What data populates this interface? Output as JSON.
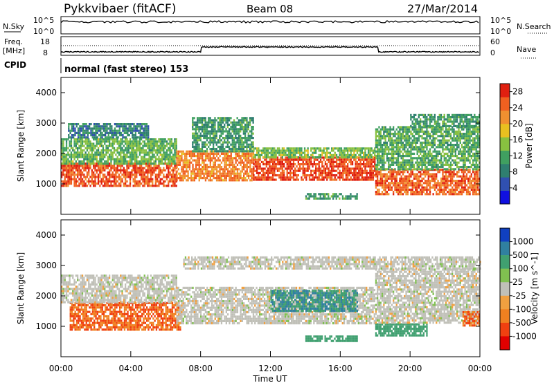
{
  "header": {
    "station": "Pykkvibaer (fitACF)",
    "beam": "Beam 08",
    "date": "27/Mar/2014"
  },
  "status_panels": {
    "nsky": {
      "label": "N.Sky",
      "left_ticks": [
        "10^5",
        "10^0"
      ],
      "right_ticks": [
        "10^5",
        "10^0"
      ],
      "right_label": "N.Search"
    },
    "freq": {
      "label_line1": "Freq.",
      "label_line2": "[MHz]",
      "left_ticks": [
        "18",
        "8"
      ],
      "right_ticks": [
        "60",
        "0"
      ],
      "right_label": "Nave"
    },
    "cpid": {
      "label": "CPID",
      "value_text": "normal (fast stereo) 153"
    }
  },
  "colors": {
    "power_scale": [
      "#1010e0",
      "#3050b0",
      "#2f7f70",
      "#40a060",
      "#88c040",
      "#e8c020",
      "#f09030",
      "#f06020",
      "#e02010"
    ],
    "velocity_scale": [
      "#1040c0",
      "#3080a0",
      "#40a070",
      "#80c050",
      "#c0c0b8",
      "#f0a040",
      "#f08020",
      "#f04010",
      "#e00000"
    ]
  },
  "chart_data": [
    {
      "type": "heatmap",
      "name": "power",
      "ylabel": "Slant Range [km]",
      "ylim": [
        0,
        4500
      ],
      "yticks": [
        1000,
        2000,
        3000,
        4000
      ],
      "xlim_hours": [
        0,
        24
      ],
      "colorbar_label": "Power [dB]",
      "colorbar_ticks": [
        4,
        8,
        12,
        16,
        20,
        24,
        28
      ],
      "colorbar_range": [
        0,
        30
      ],
      "bands": [
        {
          "t": [
            0.0,
            6.6
          ],
          "r": [
            950,
            1700
          ],
          "level": 27
        },
        {
          "t": [
            0.0,
            6.6
          ],
          "r": [
            1700,
            2500
          ],
          "level": 13
        },
        {
          "t": [
            0.4,
            5.0
          ],
          "r": [
            2500,
            3000
          ],
          "level": 8
        },
        {
          "t": [
            6.6,
            11.0
          ],
          "r": [
            1100,
            2100
          ],
          "level": 24
        },
        {
          "t": [
            7.5,
            11.0
          ],
          "r": [
            2100,
            3200
          ],
          "level": 10
        },
        {
          "t": [
            11.0,
            18.0
          ],
          "r": [
            1150,
            1900
          ],
          "level": 28
        },
        {
          "t": [
            11.0,
            18.0
          ],
          "r": [
            1900,
            2200
          ],
          "level": 14
        },
        {
          "t": [
            14.0,
            17.0
          ],
          "r": [
            550,
            700
          ],
          "level": 10
        },
        {
          "t": [
            18.0,
            24.0
          ],
          "r": [
            700,
            1500
          ],
          "level": 26
        },
        {
          "t": [
            18.0,
            24.0
          ],
          "r": [
            1500,
            2900
          ],
          "level": 12
        },
        {
          "t": [
            20.0,
            24.0
          ],
          "r": [
            2900,
            3300
          ],
          "level": 10
        }
      ]
    },
    {
      "type": "heatmap",
      "name": "velocity",
      "ylabel": "Slant Range [km]",
      "ylim": [
        0,
        4500
      ],
      "yticks": [
        1000,
        2000,
        3000,
        4000
      ],
      "xlim_hours": [
        0,
        24
      ],
      "colorbar_label": "Velocity [m s^-1]",
      "colorbar_ticks": [
        "1000",
        "500",
        "100",
        "25",
        "-25",
        "-100",
        "-500",
        "-1000"
      ],
      "bands": [
        {
          "t": [
            0.5,
            6.8
          ],
          "r": [
            900,
            1800
          ],
          "level": -300
        },
        {
          "t": [
            0.0,
            6.6
          ],
          "r": [
            1800,
            2700
          ],
          "level": 0
        },
        {
          "t": [
            6.6,
            18.0
          ],
          "r": [
            1100,
            2300
          ],
          "level": 0
        },
        {
          "t": [
            12.0,
            17.0
          ],
          "r": [
            1500,
            2200
          ],
          "level": 300
        },
        {
          "t": [
            14.0,
            17.0
          ],
          "r": [
            550,
            700
          ],
          "level": 150
        },
        {
          "t": [
            18.0,
            21.0
          ],
          "r": [
            700,
            1100
          ],
          "level": 250
        },
        {
          "t": [
            18.0,
            24.0
          ],
          "r": [
            1100,
            2900
          ],
          "level": 0
        },
        {
          "t": [
            23.0,
            24.0
          ],
          "r": [
            1000,
            1500
          ],
          "level": -300
        },
        {
          "t": [
            7.0,
            24.0
          ],
          "r": [
            2900,
            3300
          ],
          "level": 0
        }
      ]
    }
  ],
  "xaxis": {
    "tick_labels": [
      "00:00",
      "04:00",
      "08:00",
      "12:00",
      "16:00",
      "20:00",
      "00:00"
    ],
    "label": "Time UT"
  }
}
